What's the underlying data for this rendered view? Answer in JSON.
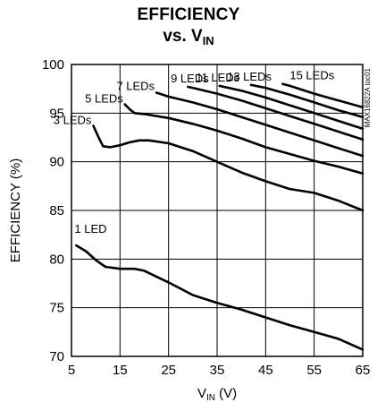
{
  "chart_data": {
    "type": "line",
    "title_line1": "EFFICIENCY",
    "title_line2_main": "vs. V",
    "title_line2_sub": "IN",
    "xlabel_main": "V",
    "xlabel_sub": "IN",
    "xlabel_unit": " (V)",
    "ylabel": "EFFICIENCY (%)",
    "xlim": [
      5,
      65
    ],
    "ylim": [
      70,
      100
    ],
    "xticks": [
      "5",
      "15",
      "25",
      "35",
      "45",
      "55",
      "65"
    ],
    "yticks": [
      "70",
      "75",
      "80",
      "85",
      "90",
      "95",
      "100"
    ],
    "grid": true,
    "part_number": "MAX16822A toc01",
    "series": [
      {
        "name": "1 LED",
        "x": [
          6,
          8,
          10,
          12,
          15,
          18,
          20,
          25,
          30,
          35,
          40,
          45,
          50,
          55,
          60,
          65
        ],
        "y": [
          81.4,
          80.8,
          79.9,
          79.2,
          79.0,
          79.0,
          78.8,
          77.6,
          76.3,
          75.5,
          74.8,
          74.0,
          73.2,
          72.5,
          71.8,
          70.7
        ]
      },
      {
        "name": "3 LEDs",
        "x": [
          9.5,
          10.5,
          11.5,
          13,
          15,
          17,
          19,
          21,
          25,
          30,
          35,
          40,
          45,
          50,
          55,
          60,
          65
        ],
        "y": [
          93.7,
          92.6,
          91.6,
          91.5,
          91.7,
          92.0,
          92.2,
          92.2,
          91.9,
          91.1,
          90.0,
          88.9,
          88.0,
          87.2,
          86.8,
          86.0,
          85.0
        ]
      },
      {
        "name": "5 LEDs",
        "x": [
          16,
          17,
          18,
          20,
          25,
          30,
          35,
          40,
          45,
          50,
          55,
          60,
          65
        ],
        "y": [
          95.9,
          95.4,
          95.0,
          94.9,
          94.5,
          93.9,
          93.2,
          92.4,
          91.5,
          90.8,
          90.1,
          89.5,
          88.8
        ]
      },
      {
        "name": "7 LEDs",
        "x": [
          22.5,
          25,
          30,
          35,
          40,
          45,
          50,
          55,
          60,
          65
        ],
        "y": [
          97.1,
          96.7,
          96.1,
          95.4,
          94.6,
          93.8,
          93.0,
          92.2,
          91.4,
          90.6
        ]
      },
      {
        "name": "9 LEDs",
        "x": [
          29,
          30,
          35,
          40,
          45,
          50,
          55,
          60,
          65
        ],
        "y": [
          97.7,
          97.6,
          97.0,
          96.3,
          95.5,
          94.7,
          93.9,
          93.1,
          92.3
        ]
      },
      {
        "name": "11 LEDs",
        "x": [
          35.5,
          40,
          45,
          50,
          55,
          60,
          65
        ],
        "y": [
          97.8,
          97.3,
          96.6,
          95.8,
          95.0,
          94.2,
          93.4
        ]
      },
      {
        "name": "13 LEDs",
        "x": [
          42,
          45,
          50,
          55,
          60,
          65
        ],
        "y": [
          97.9,
          97.6,
          96.9,
          96.1,
          95.3,
          94.6
        ]
      },
      {
        "name": "15 LEDs",
        "x": [
          48.5,
          50,
          55,
          60,
          65
        ],
        "y": [
          98.0,
          97.8,
          97.0,
          96.3,
          95.6
        ]
      }
    ]
  }
}
